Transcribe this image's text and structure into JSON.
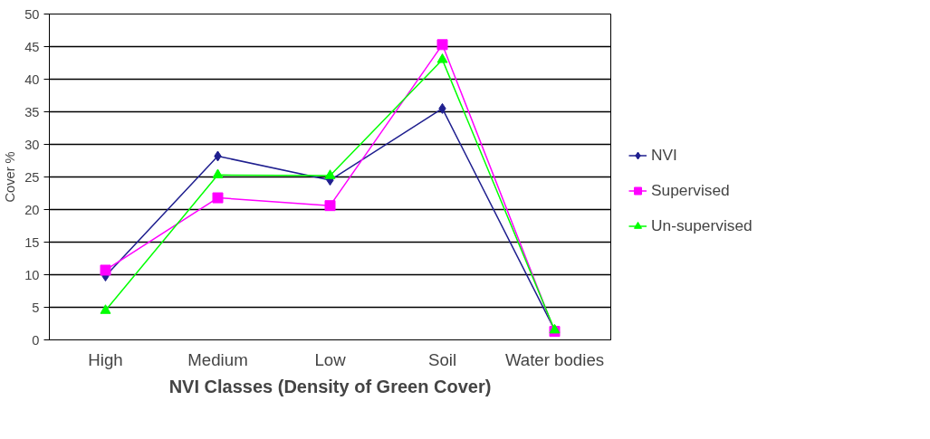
{
  "chart_data": {
    "type": "line",
    "xlabel": "NVI Classes (Density of Green Cover)",
    "ylabel": "Cover %",
    "categories": [
      "High",
      "Medium",
      "Low",
      "Soil",
      "Water bodies"
    ],
    "series": [
      {
        "name": "NVI",
        "color": "#1f1f8f",
        "marker": "diamond",
        "values": [
          9.8,
          28.2,
          24.5,
          35.5,
          1.5
        ]
      },
      {
        "name": "Supervised",
        "color": "#ff00ff",
        "marker": "square",
        "values": [
          10.7,
          21.8,
          20.6,
          45.3,
          1.3
        ]
      },
      {
        "name": "Un-supervised",
        "color": "#00ff00",
        "marker": "triangle",
        "values": [
          4.5,
          25.3,
          25.2,
          43,
          1.5
        ]
      }
    ],
    "ylim": [
      0,
      50
    ],
    "yticks": [
      0,
      5,
      10,
      15,
      20,
      25,
      30,
      35,
      40,
      45,
      50
    ],
    "grid": "y",
    "legend": "right"
  }
}
